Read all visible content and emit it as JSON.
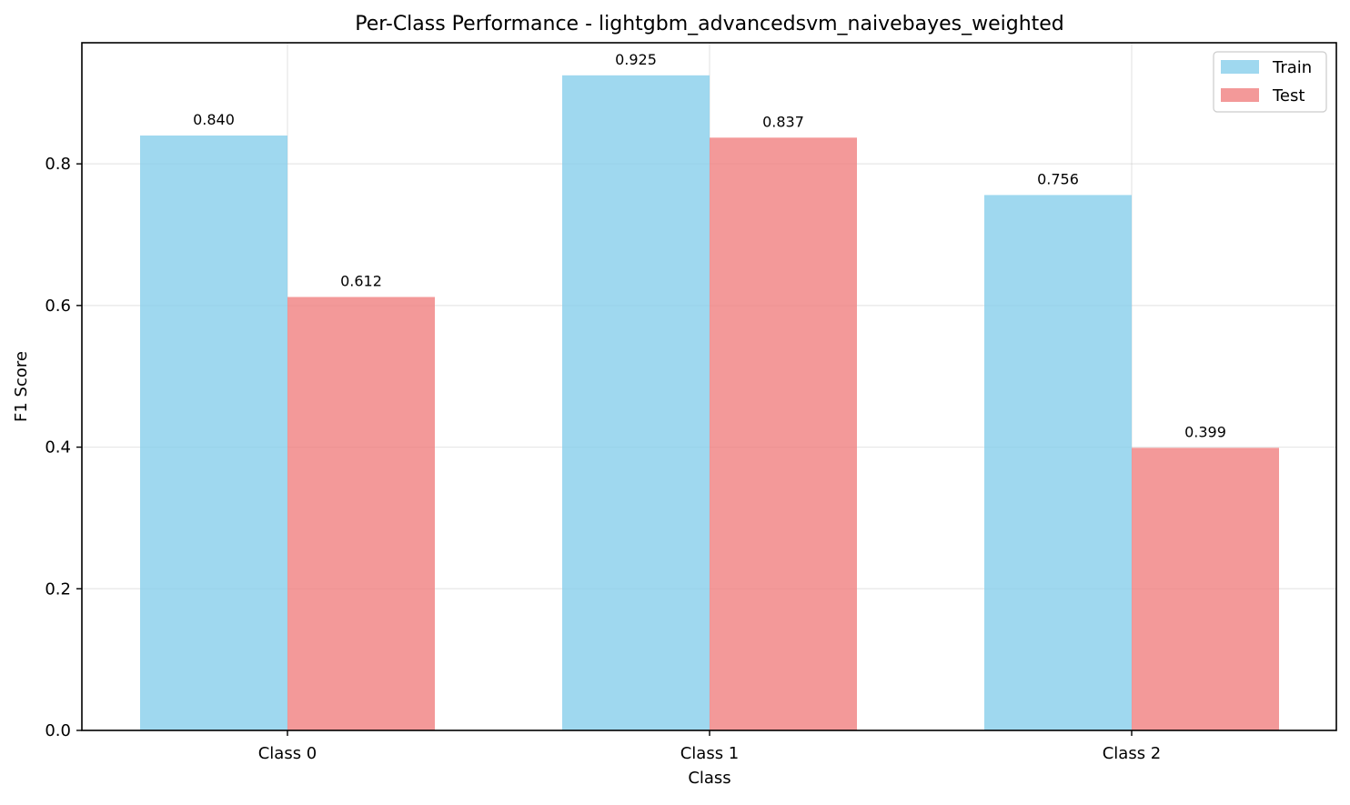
{
  "chart_data": {
    "type": "bar",
    "title": "Per-Class Performance - lightgbm_advancedsvm_naivebayes_weighted",
    "xlabel": "Class",
    "ylabel": "F1 Score",
    "categories": [
      "Class 0",
      "Class 1",
      "Class 2"
    ],
    "series": [
      {
        "name": "Train",
        "values": [
          0.84,
          0.925,
          0.756
        ],
        "labels": [
          "0.840",
          "0.925",
          "0.756"
        ],
        "color": "#87CEEB"
      },
      {
        "name": "Test",
        "values": [
          0.612,
          0.837,
          0.399
        ],
        "labels": [
          "0.612",
          "0.837",
          "0.399"
        ],
        "color": "#F08080"
      }
    ],
    "ylim": [
      0,
      0.971
    ],
    "yticks": [
      0.0,
      0.2,
      0.4,
      0.6,
      0.8
    ],
    "ytick_labels": [
      "0.0",
      "0.2",
      "0.4",
      "0.6",
      "0.8"
    ],
    "grid": true,
    "legend_position": "top-right",
    "bar_opacity": 0.8
  }
}
